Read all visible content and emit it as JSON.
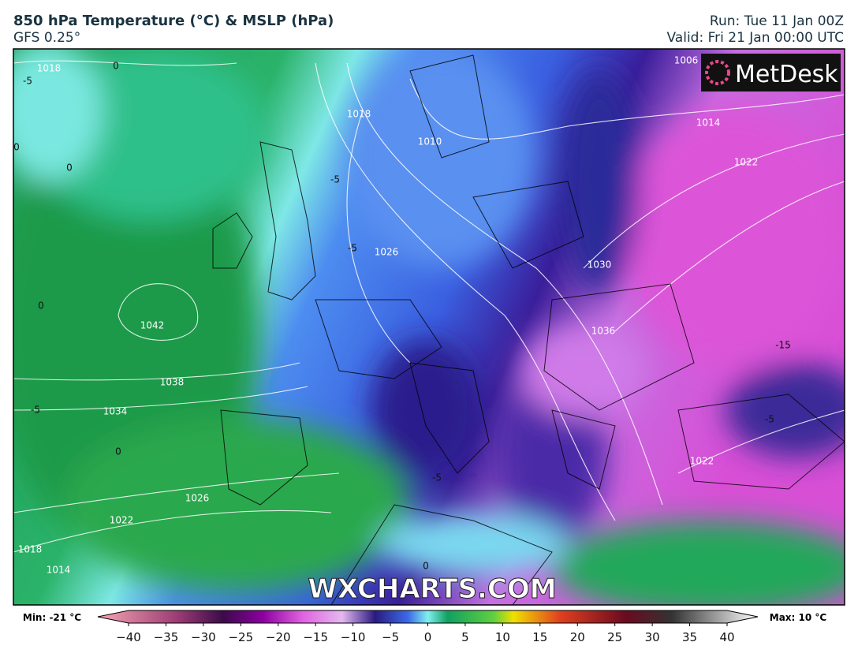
{
  "header": {
    "title": "850 hPa Temperature (°C) & MSLP (hPa)",
    "subtitle": "GFS 0.25°",
    "run": "Run: Tue 11 Jan 00Z",
    "valid": "Valid: Fri 21 Jan 00:00 UTC"
  },
  "logo": "MetDesk",
  "watermark": "WXCHARTS.COM",
  "isobar_labels": [
    1018,
    1042,
    1038,
    1034,
    1026,
    1022,
    1018,
    1014,
    1006,
    1014,
    1022,
    1030,
    1036,
    1022,
    1010,
    1018,
    1026
  ],
  "temperature_labels": [
    -5,
    0,
    0,
    0,
    0,
    -5,
    0,
    -5,
    -5,
    -15,
    -5,
    -5,
    0
  ],
  "colorbar": {
    "min_label": "Min: -21 °C",
    "max_label": "Max: 10 °C",
    "lim": [
      -40,
      40
    ],
    "ticks": [
      {
        "value": -40,
        "label": "−40"
      },
      {
        "value": -35,
        "label": "−35"
      },
      {
        "value": -30,
        "label": "−30"
      },
      {
        "value": -25,
        "label": "−25"
      },
      {
        "value": -20,
        "label": "−20"
      },
      {
        "value": -15,
        "label": "−15"
      },
      {
        "value": -10,
        "label": "−10"
      },
      {
        "value": -5,
        "label": "−5"
      },
      0,
      5,
      10,
      15,
      20,
      25,
      30,
      35,
      40
    ]
  }
}
